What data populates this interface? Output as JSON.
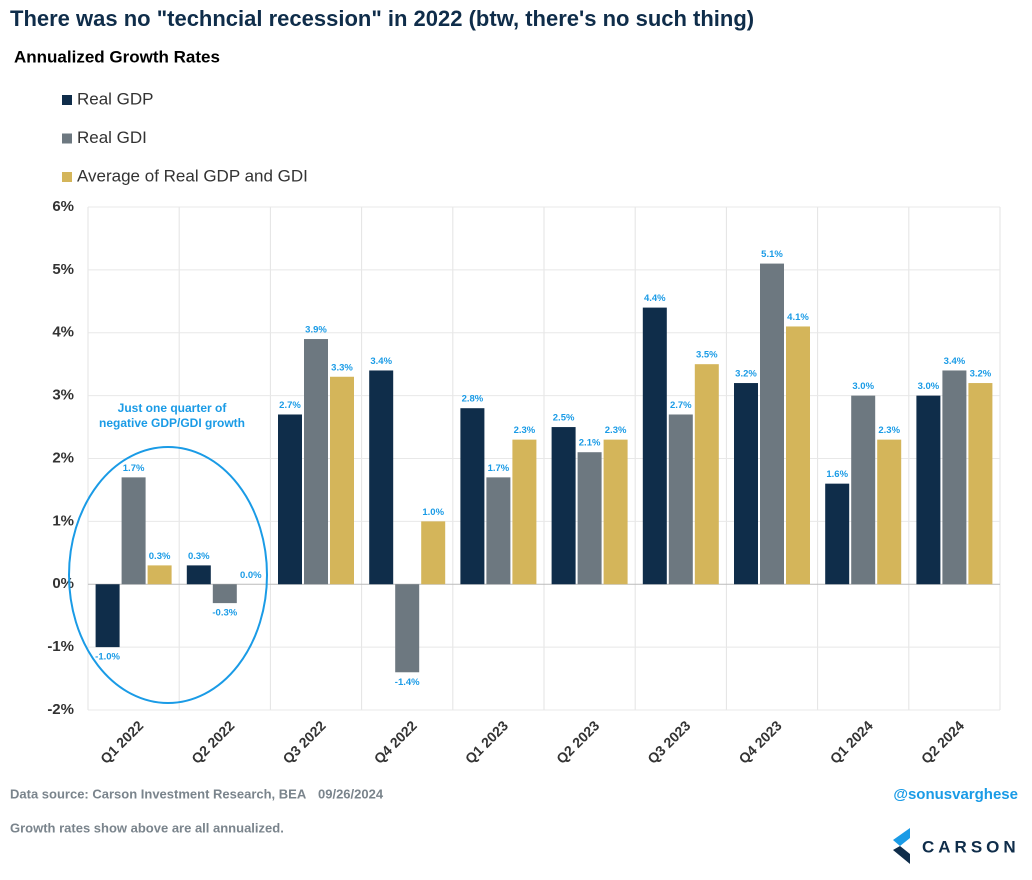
{
  "chart_data": {
    "type": "bar",
    "title": "There was no \"techncial recession\" in 2022 (btw, there's no such thing)",
    "subtitle": "Annualized Growth Rates",
    "categories": [
      "Q1 2022",
      "Q2 2022",
      "Q3 2022",
      "Q4 2022",
      "Q1 2023",
      "Q2 2023",
      "Q3 2023",
      "Q4 2023",
      "Q1 2024",
      "Q2 2024"
    ],
    "series": [
      {
        "name": "Real GDP",
        "color": "#0f2d4a",
        "values": [
          -1.0,
          0.3,
          2.7,
          3.4,
          2.8,
          2.5,
          4.4,
          3.2,
          1.6,
          3.0
        ],
        "value_labels": [
          "-1.0%",
          "0.3%",
          "2.7%",
          "3.4%",
          "2.8%",
          "2.5%",
          "4.4%",
          "3.2%",
          "1.6%",
          "3.0%"
        ]
      },
      {
        "name": "Real GDI",
        "color": "#6d7880",
        "values": [
          1.7,
          -0.3,
          3.9,
          -1.4,
          1.7,
          2.1,
          2.7,
          5.1,
          3.0,
          3.4
        ],
        "value_labels": [
          "1.7%",
          "-0.3%",
          "3.9%",
          "-1.4%",
          "1.7%",
          "2.1%",
          "2.7%",
          "5.1%",
          "3.0%",
          "3.4%"
        ]
      },
      {
        "name": "Average of Real GDP and GDI",
        "color": "#d4b55a",
        "values": [
          0.3,
          0.0,
          3.3,
          1.0,
          2.3,
          2.3,
          3.5,
          4.1,
          2.3,
          3.2
        ],
        "value_labels": [
          "0.3%",
          "0.0%",
          "3.3%",
          "1.0%",
          "2.3%",
          "2.3%",
          "3.5%",
          "4.1%",
          "2.3%",
          "3.2%"
        ]
      }
    ],
    "ylim": [
      -2,
      6
    ],
    "yticks": [
      {
        "value": -2,
        "label": "-2%"
      },
      {
        "value": -1,
        "label": "-1%"
      },
      {
        "value": 0,
        "label": "0%"
      },
      {
        "value": 1,
        "label": "1%"
      },
      {
        "value": 2,
        "label": "2%"
      },
      {
        "value": 3,
        "label": "3%"
      },
      {
        "value": 4,
        "label": "4%"
      },
      {
        "value": 5,
        "label": "5%"
      },
      {
        "value": 6,
        "label": "6%"
      }
    ],
    "grid": true,
    "label_color": "#1a9be6",
    "annotation": [
      "Just one quarter of",
      "negative GDP/GDI growth"
    ]
  },
  "footer": {
    "source": "Data source: Carson Investment Research, BEA",
    "date": "09/26/2024",
    "note": "Growth rates show above are all annualized.",
    "handle": "@sonusvarghese",
    "logo": "CARSON"
  }
}
